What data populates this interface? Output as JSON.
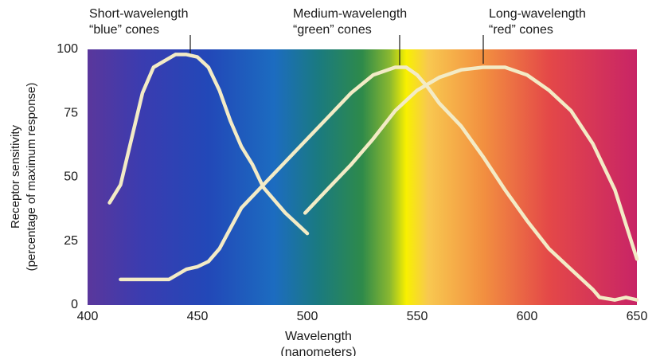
{
  "chart_data": {
    "type": "line",
    "annotations": [
      {
        "lines": [
          "Short-wavelength",
          "“blue” cones"
        ]
      },
      {
        "lines": [
          "Medium-wavelength",
          "“green” cones"
        ]
      },
      {
        "lines": [
          "Long-wavelength",
          "“red” cones"
        ]
      }
    ],
    "x_label": [
      "Wavelength",
      "(nanometers)"
    ],
    "y_label": [
      "Receptor sensitivity",
      "(percentage of maximum response)"
    ],
    "xlim": [
      400,
      650
    ],
    "ylim": [
      0,
      100
    ],
    "xticks": [
      400,
      450,
      500,
      550,
      600,
      650
    ],
    "yticks": [
      0,
      25,
      50,
      75,
      100
    ],
    "series": [
      {
        "color": "#f3ebc6",
        "x": [
          410,
          415,
          420,
          425,
          430,
          440,
          445,
          450,
          455,
          460,
          465,
          470,
          475,
          480,
          490,
          500
        ],
        "values": [
          40,
          47,
          65,
          83,
          93,
          98,
          98,
          97,
          93,
          84,
          72,
          62,
          55,
          46,
          36,
          28
        ]
      },
      {
        "color": "#f3ebc6",
        "x": [
          415,
          437,
          445,
          450,
          455,
          460,
          465,
          470,
          480,
          490,
          500,
          510,
          520,
          530,
          540,
          545,
          550,
          555,
          560,
          570,
          580,
          590,
          600,
          610,
          620,
          625,
          630,
          633,
          640,
          645,
          650
        ],
        "values": [
          10,
          10,
          14,
          15,
          17,
          22,
          30,
          38,
          47,
          56,
          65,
          74,
          83,
          90,
          93,
          93,
          90,
          85,
          79,
          70,
          58,
          45,
          33,
          22,
          14,
          10,
          6,
          3,
          2,
          3,
          2
        ]
      },
      {
        "color": "#f3ebc6",
        "x": [
          499,
          510,
          520,
          530,
          540,
          550,
          560,
          570,
          580,
          590,
          600,
          610,
          620,
          630,
          640,
          650
        ],
        "values": [
          36,
          46,
          55,
          65,
          76,
          84,
          89,
          92,
          93,
          93,
          90,
          84,
          76,
          63,
          45,
          18
        ]
      }
    ]
  }
}
